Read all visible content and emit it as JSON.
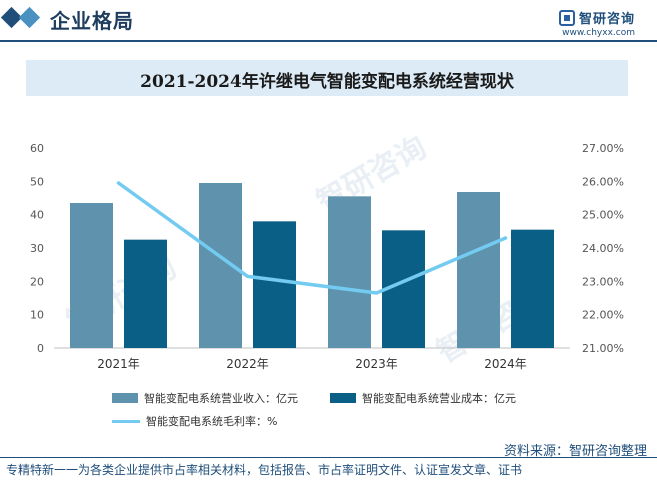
{
  "header": {
    "title": "企业格局",
    "logo_text": "智研咨询",
    "logo_url": "www.chyxx.com"
  },
  "chart_data": {
    "type": "bar",
    "title": "2021-2024年许继电气智能变配电系统经营现状",
    "categories": [
      "2021年",
      "2022年",
      "2023年",
      "2024年"
    ],
    "series": [
      {
        "name": "智能变配电系统营业收入：亿元",
        "type": "bar",
        "axis": "left",
        "color": "#5f93ad",
        "values": [
          43.5,
          49.5,
          45.5,
          46.8
        ]
      },
      {
        "name": "智能变配电系统营业成本：亿元",
        "type": "bar",
        "axis": "left",
        "color": "#0a5f86",
        "values": [
          32.5,
          38.0,
          35.3,
          35.5
        ]
      },
      {
        "name": "智能变配电系统毛利率：%",
        "type": "line",
        "axis": "right",
        "color": "#73cbf1",
        "values": [
          25.95,
          23.15,
          22.65,
          24.3
        ]
      }
    ],
    "y_left": {
      "min": 0,
      "max": 60,
      "ticks": [
        "0",
        "10",
        "20",
        "30",
        "40",
        "50",
        "60"
      ]
    },
    "y_right": {
      "min": 21,
      "max": 27,
      "ticks": [
        "21.00%",
        "22.00%",
        "23.00%",
        "24.00%",
        "25.00%",
        "26.00%",
        "27.00%"
      ]
    },
    "grid": false,
    "legend_position": "bottom-left"
  },
  "footer": {
    "source": "资料来源：智研咨询整理",
    "slogan": "专精特新一一为各类企业提供市占率相关材料，包括报告、市占率证明文件、认证宣发文章、证书"
  }
}
